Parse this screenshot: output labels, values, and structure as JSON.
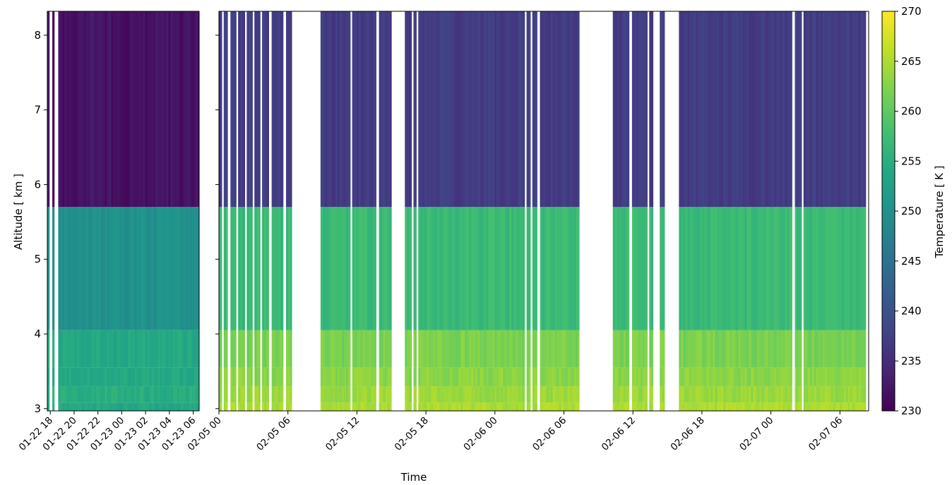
{
  "chart_data": {
    "type": "heatmap",
    "xlabel": "Time",
    "ylabel": "Altitude [ km ]",
    "ylim": [
      2.97,
      8.32
    ],
    "y_ticks": [
      3,
      4,
      5,
      6,
      7,
      8
    ],
    "altitude_layers_km": [
      [
        2.97,
        3.08
      ],
      [
        3.08,
        3.3
      ],
      [
        3.3,
        3.55
      ],
      [
        3.55,
        4.05
      ],
      [
        4.05,
        5.7
      ],
      [
        5.7,
        8.32
      ]
    ],
    "panels": [
      {
        "name": "left",
        "x_range": [
          "01-22 17:45",
          "01-23 06:30"
        ],
        "x_ticks": [
          "01-22 18",
          "01-22 20",
          "01-22 22",
          "01-23 00",
          "01-23 02",
          "01-23 04",
          "01-23 06"
        ],
        "segments": [
          [
            "01-22 17:45",
            "01-22 17:55"
          ],
          [
            "01-22 18:10",
            "01-22 18:20"
          ],
          [
            "01-22 18:40",
            "01-23 06:30"
          ]
        ],
        "layer_temperatures_K": [
          254,
          255,
          254,
          254,
          250,
          232
        ]
      },
      {
        "name": "right",
        "x_range": [
          "02-05 00:00",
          "02-07 08:30"
        ],
        "x_ticks": [
          "02-05 00",
          "02-05 06",
          "02-05 12",
          "02-05 18",
          "02-06 00",
          "02-06 06",
          "02-06 12",
          "02-06 18",
          "02-07 00",
          "02-07 06"
        ],
        "layer_temperatures_K": [
          265,
          264,
          263,
          262,
          257,
          237
        ],
        "segments": [
          [
            "02-05 00:00",
            "02-05 00:15"
          ],
          [
            "02-05 00:25",
            "02-05 00:45"
          ],
          [
            "02-05 01:00",
            "02-05 01:30"
          ],
          [
            "02-05 01:40",
            "02-05 02:15"
          ],
          [
            "02-05 02:25",
            "02-05 02:55"
          ],
          [
            "02-05 03:05",
            "02-05 03:35"
          ],
          [
            "02-05 03:45",
            "02-05 04:20"
          ],
          [
            "02-05 04:35",
            "02-05 05:35"
          ],
          [
            "02-05 05:50",
            "02-05 06:20"
          ],
          [
            "02-05 08:50",
            "02-05 11:25"
          ],
          [
            "02-05 11:35",
            "02-05 13:40"
          ],
          [
            "02-05 13:55",
            "02-05 15:00"
          ],
          [
            "02-05 16:10",
            "02-05 16:45"
          ],
          [
            "02-05 16:55",
            "02-05 17:10"
          ],
          [
            "02-05 17:20",
            "02-06 02:35"
          ],
          [
            "02-06 02:45",
            "02-06 03:05"
          ],
          [
            "02-06 03:15",
            "02-06 03:40"
          ],
          [
            "02-06 03:55",
            "02-06 07:20"
          ],
          [
            "02-06 10:15",
            "02-06 11:40"
          ],
          [
            "02-06 11:55",
            "02-06 13:15"
          ],
          [
            "02-06 13:25",
            "02-06 13:45"
          ],
          [
            "02-06 14:20",
            "02-06 14:45"
          ],
          [
            "02-06 16:00",
            "02-07 01:50"
          ],
          [
            "02-07 02:05",
            "02-07 02:40"
          ],
          [
            "02-07 02:50",
            "02-07 08:15"
          ]
        ]
      }
    ],
    "gaps_right": [
      [
        "02-05 06:20",
        "02-05 08:50"
      ],
      [
        "02-05 15:00",
        "02-05 16:10"
      ],
      [
        "02-06 07:20",
        "02-06 10:15"
      ],
      [
        "02-06 14:45",
        "02-06 16:00"
      ]
    ],
    "colorbar": {
      "label": "Temperature [ K ]",
      "range": [
        230,
        270
      ],
      "ticks": [
        230,
        235,
        240,
        245,
        250,
        255,
        260,
        265,
        270
      ],
      "colormap": "viridis"
    }
  }
}
